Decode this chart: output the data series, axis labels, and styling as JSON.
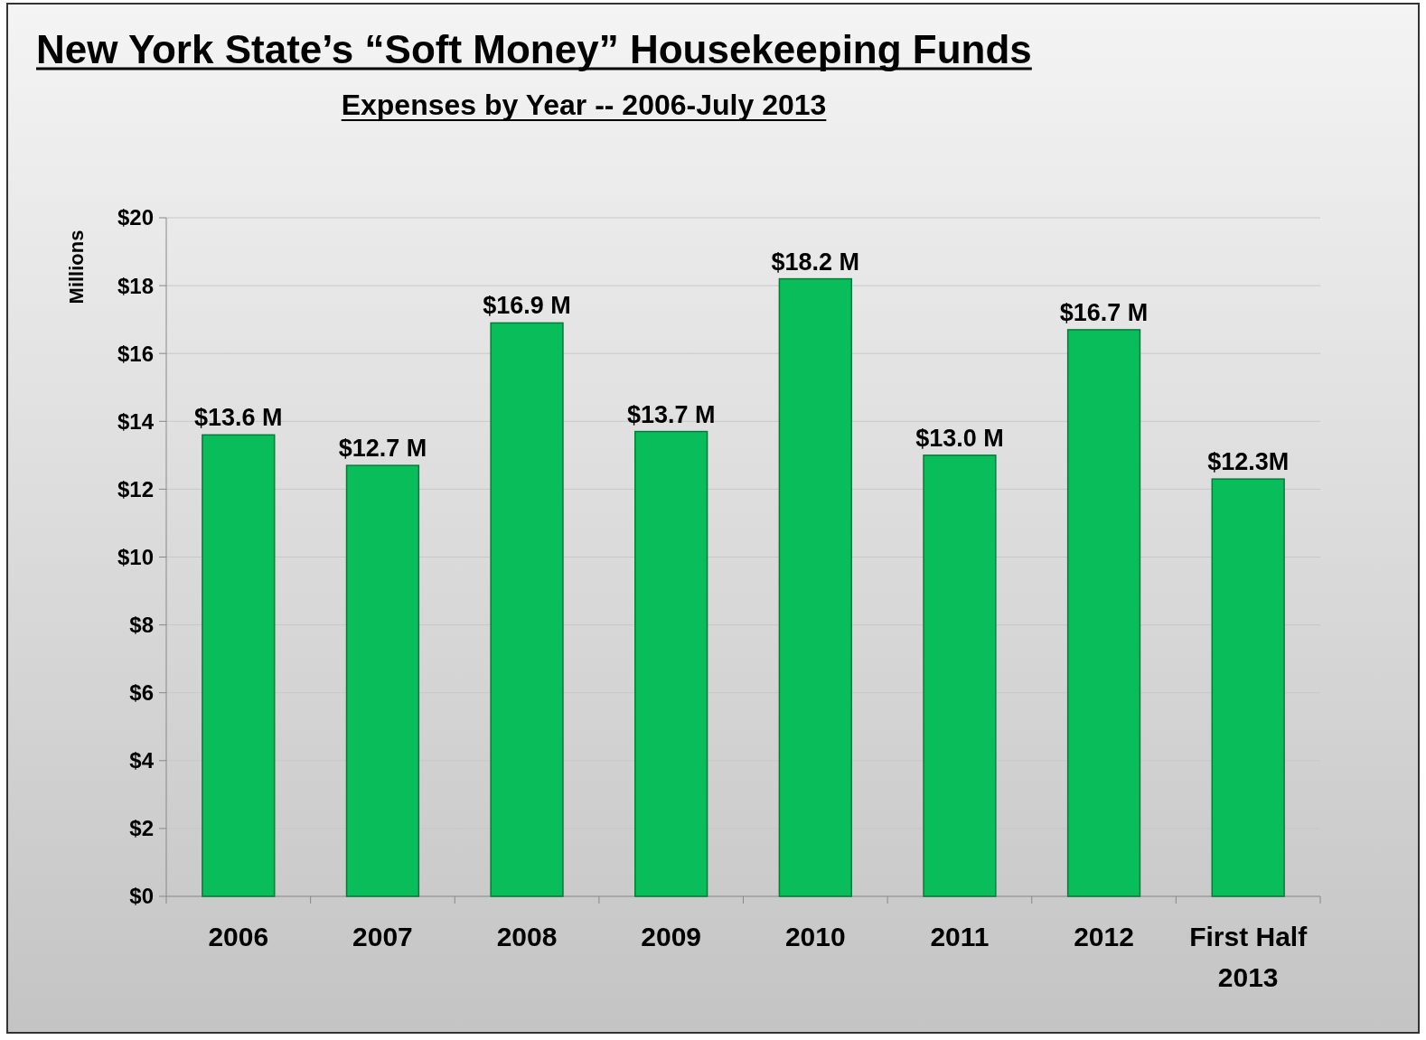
{
  "chart_data": {
    "type": "bar",
    "title": "New York State’s “Soft Money” Housekeeping Funds",
    "subtitle": "Expenses by Year -- 2006-July 2013",
    "ylabel": "Millions",
    "categories": [
      "2006",
      "2007",
      "2008",
      "2009",
      "2010",
      "2011",
      "2012",
      "First Half 2013"
    ],
    "values": [
      13.6,
      12.7,
      16.9,
      13.7,
      18.2,
      13.0,
      16.7,
      12.3
    ],
    "value_labels": [
      "$13.6 M",
      "$12.7 M",
      "$16.9 M",
      "$13.7 M",
      "$18.2 M",
      "$13.0 M",
      "$16.7 M",
      "$12.3M"
    ],
    "color": "#08bd5a",
    "ylim": [
      0,
      20
    ],
    "yticks": [
      {
        "value": 0,
        "label": "$0"
      },
      {
        "value": 2,
        "label": "$2"
      },
      {
        "value": 4,
        "label": "$4"
      },
      {
        "value": 6,
        "label": "$6"
      },
      {
        "value": 8,
        "label": "$8"
      },
      {
        "value": 10,
        "label": "$10"
      },
      {
        "value": 12,
        "label": "$12"
      },
      {
        "value": 14,
        "label": "$14"
      },
      {
        "value": 16,
        "label": "$16"
      },
      {
        "value": 18,
        "label": "$18"
      },
      {
        "value": 20,
        "label": "$20"
      }
    ],
    "grid": "y"
  }
}
